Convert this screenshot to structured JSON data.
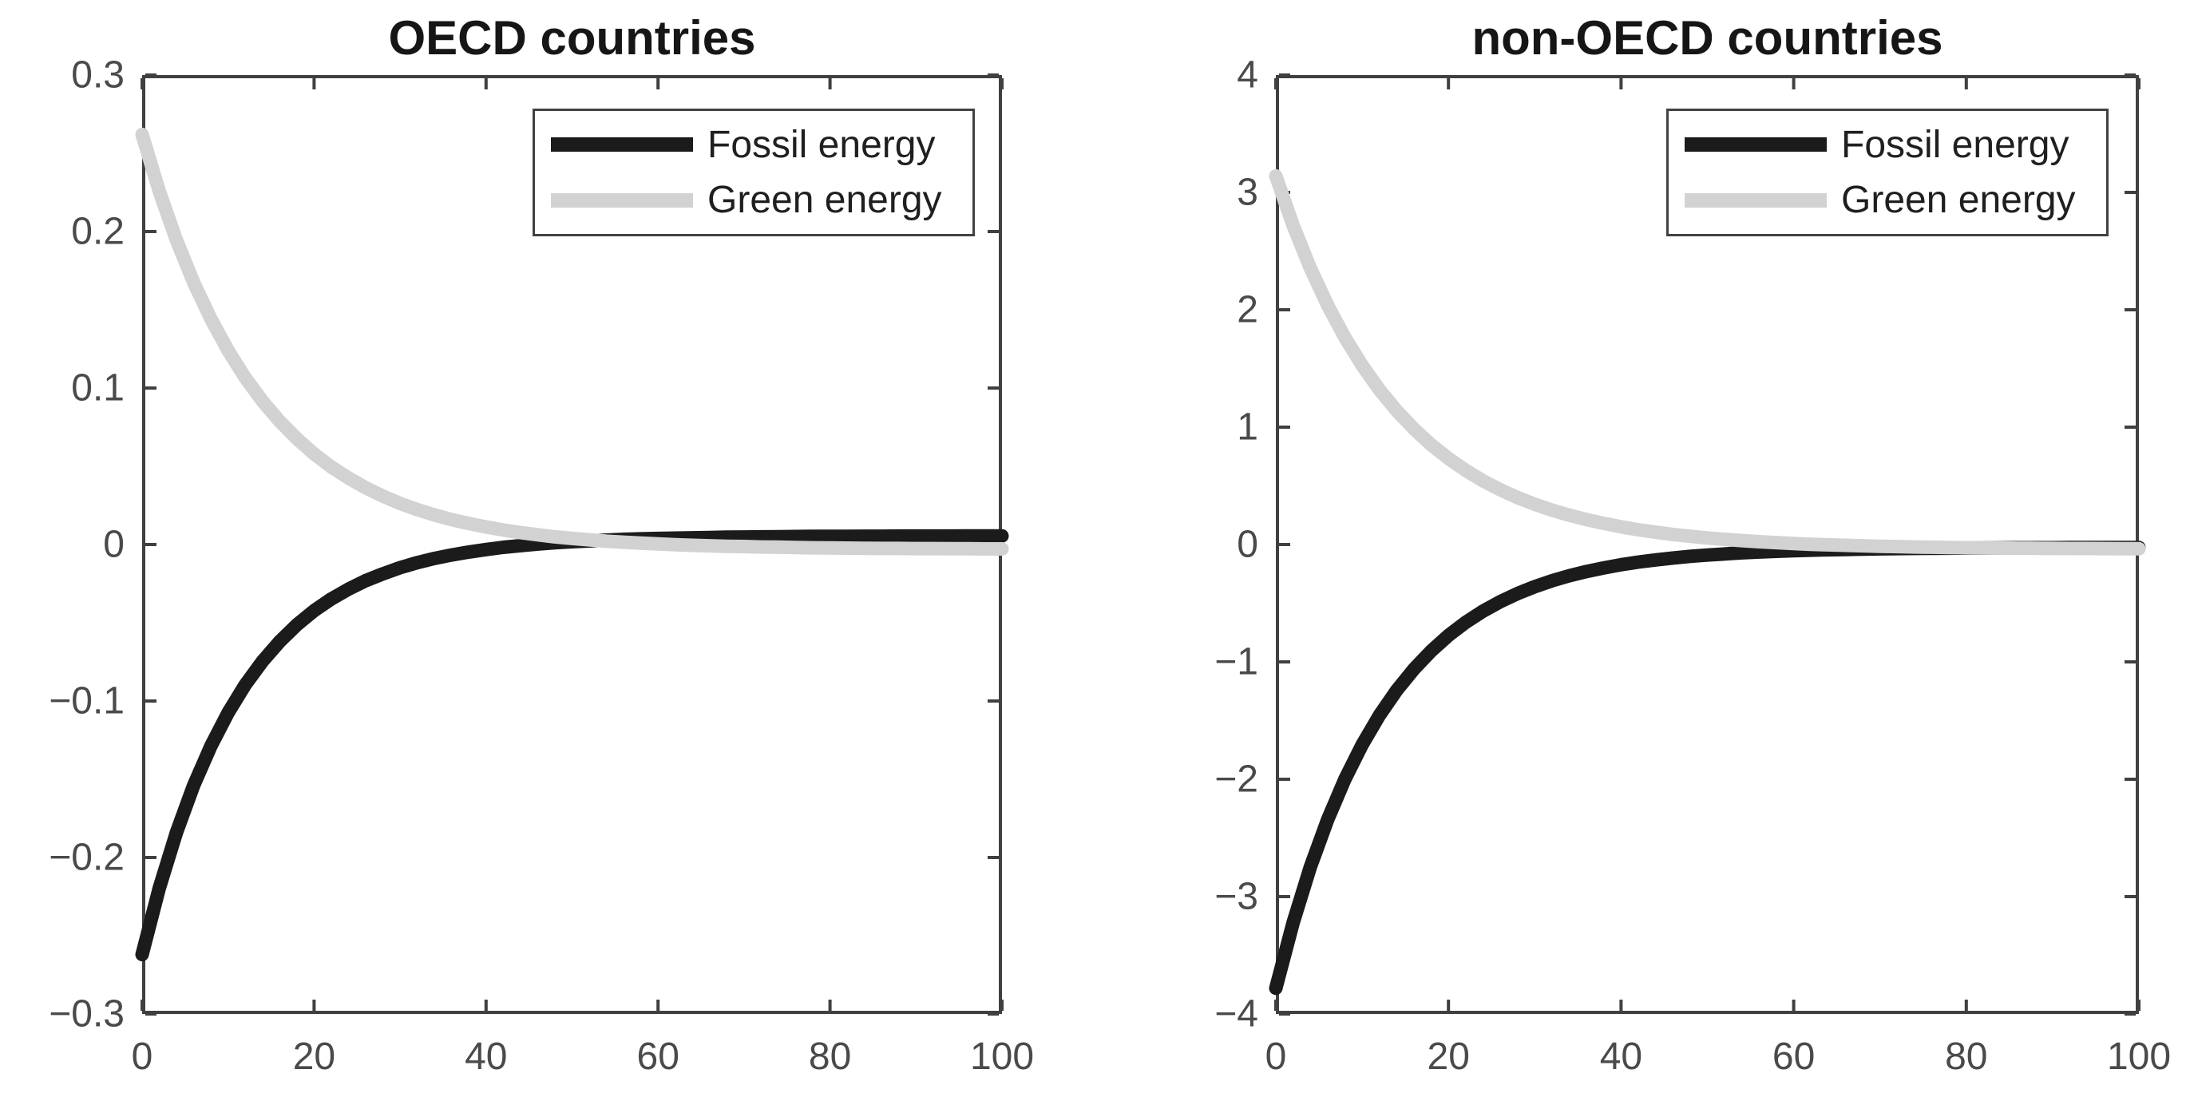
{
  "styles": {
    "background": "#ffffff",
    "axis_color": "#404040",
    "tick_label_color": "#4a4a4a",
    "title_color": "#161616",
    "legend_text_color": "#1f1f1f",
    "fossil_color": "#1b1b1b",
    "green_color": "#d2d2d2"
  },
  "chart_data": [
    {
      "type": "line",
      "title": "OECD countries",
      "xlabel": "",
      "ylabel": "",
      "xlim": [
        0,
        100
      ],
      "ylim": [
        -0.3,
        0.3
      ],
      "grid": false,
      "xticks": [
        0,
        20,
        40,
        60,
        80,
        100
      ],
      "xtick_labels": [
        "0",
        "20",
        "40",
        "60",
        "80",
        "100"
      ],
      "yticks": [
        -0.3,
        -0.2,
        -0.1,
        0,
        0.1,
        0.2,
        0.3
      ],
      "ytick_labels": [
        "−0.3",
        "−0.2",
        "−0.1",
        "0",
        "0.1",
        "0.2",
        "0.3"
      ],
      "legend": {
        "position": "top-right-inside",
        "entries": [
          {
            "label": "Fossil energy",
            "color": "#1b1b1b"
          },
          {
            "label": "Green energy",
            "color": "#d2d2d2"
          }
        ]
      },
      "x": [
        0,
        2,
        4,
        6,
        8,
        10,
        12,
        14,
        16,
        18,
        20,
        22,
        24,
        26,
        28,
        30,
        32,
        34,
        36,
        38,
        40,
        42,
        44,
        46,
        48,
        50,
        52,
        54,
        56,
        58,
        60,
        62,
        64,
        66,
        68,
        70,
        72,
        74,
        76,
        78,
        80,
        82,
        84,
        86,
        88,
        90,
        92,
        94,
        96,
        98,
        100
      ],
      "series": [
        {
          "name": "Fossil energy",
          "data_name": "fossil-energy-line",
          "color": "#1b1b1b",
          "y": [
            -0.262,
            -0.2196,
            -0.1839,
            -0.1539,
            -0.1287,
            -0.1075,
            -0.0896,
            -0.0746,
            -0.062,
            -0.0513,
            -0.0423,
            -0.0348,
            -0.0285,
            -0.0231,
            -0.0187,
            -0.0148,
            -0.0116,
            -0.0089,
            -0.0067,
            -0.0048,
            -0.0032,
            -0.0018,
            -0.0007,
            0.0003,
            0.0011,
            0.0018,
            0.0023,
            0.0028,
            0.0033,
            0.0036,
            0.0039,
            0.0041,
            0.0043,
            0.0045,
            0.0047,
            0.0048,
            0.0049,
            0.005,
            0.0051,
            0.0052,
            0.0052,
            0.0052,
            0.0053,
            0.0053,
            0.0054,
            0.0054,
            0.0054,
            0.0054,
            0.0055,
            0.0055,
            0.0055
          ]
        },
        {
          "name": "Green energy",
          "data_name": "green-energy-line",
          "color": "#d2d2d2",
          "y": [
            0.262,
            0.2257,
            0.1944,
            0.1674,
            0.1441,
            0.124,
            0.1066,
            0.0916,
            0.0787,
            0.0676,
            0.0579,
            0.0496,
            0.0425,
            0.0363,
            0.0309,
            0.0263,
            0.0223,
            0.0189,
            0.0159,
            0.0134,
            0.0112,
            0.0093,
            0.0076,
            0.0062,
            0.0049,
            0.0039,
            0.003,
            0.0021,
            0.0015,
            0.0009,
            0.0004,
            -0.0001,
            -0.0005,
            -0.0008,
            -0.0011,
            -0.0013,
            -0.0016,
            -0.0017,
            -0.0019,
            -0.0021,
            -0.0022,
            -0.0023,
            -0.0024,
            -0.0025,
            -0.0025,
            -0.0026,
            -0.0026,
            -0.0027,
            -0.0027,
            -0.0028,
            -0.0028
          ]
        }
      ]
    },
    {
      "type": "line",
      "title": "non-OECD countries",
      "xlabel": "",
      "ylabel": "",
      "xlim": [
        0,
        100
      ],
      "ylim": [
        -4,
        4
      ],
      "grid": false,
      "xticks": [
        0,
        20,
        40,
        60,
        80,
        100
      ],
      "xtick_labels": [
        "0",
        "20",
        "40",
        "60",
        "80",
        "100"
      ],
      "yticks": [
        -4,
        -3,
        -2,
        -1,
        0,
        1,
        2,
        3,
        4
      ],
      "ytick_labels": [
        "−4",
        "−3",
        "−2",
        "−1",
        "0",
        "1",
        "2",
        "3",
        "4"
      ],
      "legend": {
        "position": "top-right-inside",
        "entries": [
          {
            "label": "Fossil energy",
            "color": "#1b1b1b"
          },
          {
            "label": "Green energy",
            "color": "#d2d2d2"
          }
        ]
      },
      "x": [
        0,
        2,
        4,
        6,
        8,
        10,
        12,
        14,
        16,
        18,
        20,
        22,
        24,
        26,
        28,
        30,
        32,
        34,
        36,
        38,
        40,
        42,
        44,
        46,
        48,
        50,
        52,
        54,
        56,
        58,
        60,
        62,
        64,
        66,
        68,
        70,
        72,
        74,
        76,
        78,
        80,
        82,
        84,
        86,
        88,
        90,
        92,
        94,
        96,
        98,
        100
      ],
      "series": [
        {
          "name": "Fossil energy",
          "data_name": "fossil-energy-line",
          "color": "#1b1b1b",
          "y": [
            -3.78,
            -3.223,
            -2.748,
            -2.344,
            -1.999,
            -1.706,
            -1.456,
            -1.243,
            -1.061,
            -0.907,
            -0.775,
            -0.663,
            -0.568,
            -0.487,
            -0.418,
            -0.359,
            -0.309,
            -0.266,
            -0.23,
            -0.199,
            -0.172,
            -0.15,
            -0.131,
            -0.115,
            -0.101,
            -0.09,
            -0.08,
            -0.071,
            -0.064,
            -0.058,
            -0.053,
            -0.048,
            -0.045,
            -0.042,
            -0.039,
            -0.037,
            -0.035,
            -0.033,
            -0.032,
            -0.031,
            -0.03,
            -0.029,
            -0.028,
            -0.027,
            -0.027,
            -0.027,
            -0.026,
            -0.026,
            -0.026,
            -0.026,
            -0.025
          ]
        },
        {
          "name": "Green energy",
          "data_name": "green-energy-line",
          "color": "#d2d2d2",
          "y": [
            3.14,
            2.72,
            2.355,
            2.038,
            1.764,
            1.526,
            1.319,
            1.14,
            0.985,
            0.85,
            0.733,
            0.632,
            0.543,
            0.467,
            0.4,
            0.343,
            0.293,
            0.25,
            0.212,
            0.18,
            0.151,
            0.126,
            0.105,
            0.086,
            0.07,
            0.056,
            0.044,
            0.033,
            0.024,
            0.016,
            0.009,
            0.002,
            -0.003,
            -0.007,
            -0.011,
            -0.015,
            -0.018,
            -0.021,
            -0.023,
            -0.025,
            -0.027,
            -0.028,
            -0.03,
            -0.031,
            -0.032,
            -0.033,
            -0.034,
            -0.034,
            -0.035,
            -0.036,
            -0.036
          ]
        }
      ]
    }
  ]
}
